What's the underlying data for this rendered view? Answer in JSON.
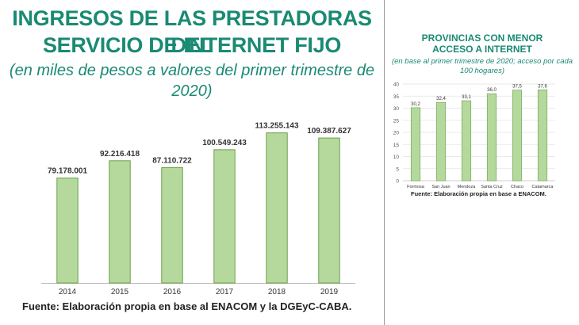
{
  "left": {
    "title_line1": "INGRESOS DE LAS PRESTADORAS DEL",
    "title_line2": "SERVICIO DE INTERNET FIJO",
    "subtitle_line1": "(en miles de pesos a valores del primer trimestre de",
    "subtitle_line2": "2020)",
    "source": "Fuente: Elaboración propia en base al ENACOM y la DGEyC-CABA."
  },
  "right": {
    "title_line1": "PROVINCIAS CON MENOR",
    "title_line2": "ACCESO A INTERNET",
    "subtitle_line1": "(en base al primer trimestre de 2020; acceso por cada",
    "subtitle_line2": "100 hogares)",
    "source": "Fuente: Elaboración propia en base a ENACOM."
  },
  "colors": {
    "bar_fill": "#b5d99c",
    "bar_stroke": "#6a9e4a",
    "title": "#1a8a73"
  },
  "chart_data": [
    {
      "type": "bar",
      "title": "INGRESOS DE LAS PRESTADORAS DEL SERVICIO DE INTERNET FIJO",
      "categories": [
        "2014",
        "2015",
        "2016",
        "2017",
        "2018",
        "2019"
      ],
      "values": [
        79178001,
        92216418,
        87110722,
        100549243,
        113255143,
        109387627
      ],
      "value_labels": [
        "79.178.001",
        "92.216.418",
        "87.110.722",
        "100.549.243",
        "113.255.143",
        "109.387.627"
      ],
      "ylim": [
        0,
        125000000
      ],
      "grid": false,
      "xlabel": "",
      "ylabel": ""
    },
    {
      "type": "bar",
      "title": "PROVINCIAS CON MENOR ACCESO A INTERNET",
      "categories": [
        "Formosa",
        "San Juan",
        "Mendoza",
        "Santa Cruz",
        "Chaco",
        "Catamarca"
      ],
      "values": [
        30.2,
        32.4,
        33.1,
        36.0,
        37.5,
        37.6
      ],
      "value_labels": [
        "30,2",
        "32,4",
        "33,1",
        "36,0",
        "37,5",
        "37,6"
      ],
      "yticks": [
        0,
        5,
        10,
        15,
        20,
        25,
        30,
        35,
        40
      ],
      "ylim": [
        0,
        40
      ],
      "grid": true,
      "xlabel": "",
      "ylabel": ""
    }
  ]
}
